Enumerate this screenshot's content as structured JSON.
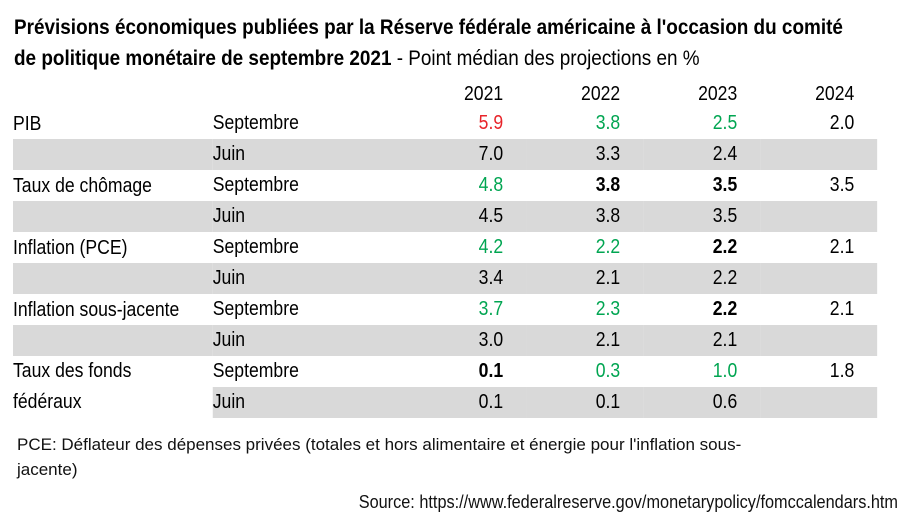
{
  "title": {
    "line1_bold": "Prévisions économiques publiées par la Réserve fédérale américaine à l'occasion du comité",
    "line2_bold": "de politique monétaire de septembre 2021",
    "line2_regular": " - Point médian des projections en %"
  },
  "colors": {
    "red": "#e8242a",
    "green": "#00a551",
    "row_alt": "#d9d9d9",
    "text": "#000000"
  },
  "table": {
    "year_headers": [
      "2021",
      "2022",
      "2023",
      "2024"
    ],
    "groups": [
      {
        "indicator": "PIB",
        "september": {
          "label": "Septembre",
          "values": [
            "5.9",
            "3.8",
            "2.5",
            "2.0"
          ],
          "styles": [
            "red",
            "green",
            "green",
            "plain"
          ]
        },
        "june": {
          "label": "Juin",
          "values": [
            "7.0",
            "3.3",
            "2.4",
            ""
          ]
        }
      },
      {
        "indicator": "Taux de chômage",
        "september": {
          "label": "Septembre",
          "values": [
            "4.8",
            "3.8",
            "3.5",
            "3.5"
          ],
          "styles": [
            "green",
            "bold",
            "bold",
            "plain"
          ]
        },
        "june": {
          "label": "Juin",
          "values": [
            "4.5",
            "3.8",
            "3.5",
            ""
          ]
        }
      },
      {
        "indicator": "Inflation (PCE)",
        "september": {
          "label": "Septembre",
          "values": [
            "4.2",
            "2.2",
            "2.2",
            "2.1"
          ],
          "styles": [
            "green",
            "green",
            "bold",
            "plain"
          ]
        },
        "june": {
          "label": "Juin",
          "values": [
            "3.4",
            "2.1",
            "2.2",
            ""
          ]
        }
      },
      {
        "indicator": "Inflation sous-jacente",
        "september": {
          "label": "Septembre",
          "values": [
            "3.7",
            "2.3",
            "2.2",
            "2.1"
          ],
          "styles": [
            "green",
            "green",
            "bold",
            "plain"
          ]
        },
        "june": {
          "label": "Juin",
          "values": [
            "3.0",
            "2.1",
            "2.1",
            ""
          ]
        }
      },
      {
        "indicator": "Taux des fonds fédéraux",
        "september": {
          "label": "Septembre",
          "values": [
            "0.1",
            "0.3",
            "1.0",
            "1.8"
          ],
          "styles": [
            "bold",
            "green",
            "green",
            "plain"
          ]
        },
        "june": {
          "label": "Juin",
          "values": [
            "0.1",
            "0.1",
            "0.6",
            ""
          ]
        }
      }
    ]
  },
  "footnote": {
    "line1": "PCE: Déflateur des dépenses privées (totales et hors alimentaire et énergie pour l'inflation sous-",
    "line2": "jacente)"
  },
  "source": {
    "text": "Source: https://www.federalreserve.gov/monetarypolicy/fomccalendars.htm"
  }
}
